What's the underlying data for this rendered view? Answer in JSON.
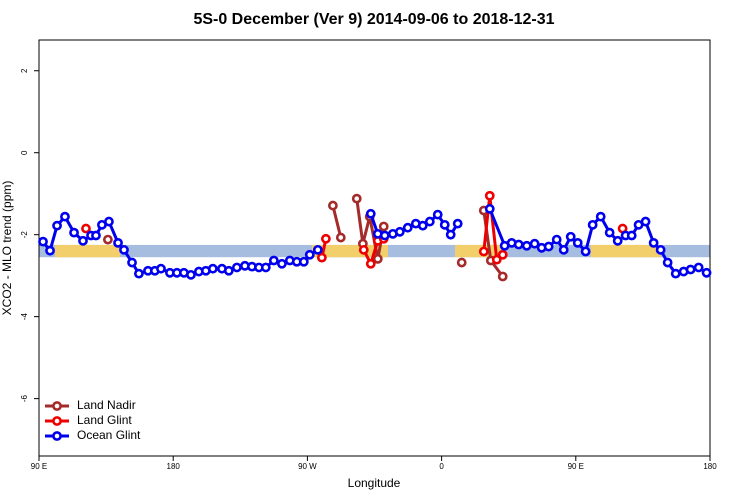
{
  "chart_data": {
    "type": "line",
    "title": "5S-0 December (Ver 9)   2014-09-06 to 2018-12-31",
    "x_label": "Longitude",
    "y_label": "XCO2 - MLO trend (ppm)",
    "xlim": [
      90,
      540
    ],
    "ylim": [
      -7.4,
      2.75
    ],
    "xticks": [
      {
        "value": 90,
        "label": "90 E"
      },
      180,
      {
        "value": 270,
        "label": "90 W"
      },
      {
        "value": 360,
        "label": "0"
      },
      {
        "value": 450,
        "label": "90 E"
      },
      {
        "value": 540,
        "label": "180"
      }
    ],
    "yticks": [
      2,
      0,
      -2,
      -4,
      -6
    ],
    "band": {
      "ylim": [
        -2.55,
        -2.25
      ],
      "color": "#a7bde0",
      "land_color": "#f2cf6b",
      "land_spans": [
        [
          100.7,
          144.4
        ],
        [
          273,
          324
        ],
        [
          369,
          399.7
        ],
        [
          460,
          507
        ]
      ]
    },
    "legend": "bottom-left",
    "series": [
      {
        "name": "Land Nadir",
        "color": "#a52a2a",
        "x": [
          136.2,
          null,
          287.1,
          292.4,
          null,
          303.1,
          307.2,
          311.8,
          317.2,
          321.2,
          null,
          373.5,
          null,
          388.3,
          393.0,
          401.0
        ],
        "values": [
          -2.12,
          null,
          -1.29,
          -2.07,
          null,
          -1.12,
          -2.22,
          -1.56,
          -2.59,
          -1.8,
          null,
          -2.68,
          null,
          -1.41,
          -2.63,
          -3.02
        ]
      },
      {
        "name": "Land Glint",
        "color": "#ee0000",
        "x": [
          121.5,
          null,
          279.7,
          282.4,
          null,
          307.8,
          312.5,
          317.2,
          321.2,
          null,
          388.3,
          392.3,
          397.0,
          401.0,
          null,
          481.4
        ],
        "values": [
          -1.85,
          null,
          -2.56,
          -2.1,
          null,
          -2.37,
          -2.71,
          -2.15,
          -2.1,
          null,
          -2.41,
          -1.05,
          -2.61,
          -2.49,
          null,
          -1.85
        ]
      },
      {
        "name": "Ocean Glint",
        "color": "#0000ee",
        "x": [
          92.7,
          97.4,
          102.1,
          107.4,
          113.5,
          119.5,
          124.9,
          128.2,
          132.2,
          136.9,
          143.0,
          147.0,
          152.4,
          157.0,
          163.1,
          167.7,
          171.8,
          177.8,
          182.5,
          187.2,
          191.9,
          197.2,
          201.9,
          206.6,
          212.7,
          217.3,
          222.7,
          228.1,
          232.8,
          237.5,
          242.1,
          247.5,
          252.9,
          258.2,
          262.9,
          267.6,
          271.6,
          277.0,
          null,
          312.5,
          317.2,
          321.9,
          327.3,
          332.0,
          337.3,
          342.7,
          347.4,
          352.1,
          357.4,
          362.1,
          366.1,
          370.8,
          null,
          392.3,
          402.3,
          407.0,
          411.7,
          417.1,
          422.4,
          427.1,
          431.8,
          437.2,
          441.9,
          446.6,
          451.3,
          456.6,
          461.3,
          466.7,
          472.7,
          478.1,
          483.4,
          487.5,
          492.1,
          496.8,
          502.2,
          506.9,
          511.6,
          517.0,
          522.3,
          527.0,
          532.4,
          537.7
        ],
        "values": [
          -2.17,
          -2.39,
          -1.78,
          -1.56,
          -1.95,
          -2.15,
          -2.02,
          -2.02,
          -1.76,
          -1.68,
          -2.2,
          -2.37,
          -2.68,
          -2.95,
          -2.88,
          -2.88,
          -2.83,
          -2.93,
          -2.93,
          -2.93,
          -2.98,
          -2.9,
          -2.88,
          -2.83,
          -2.83,
          -2.88,
          -2.8,
          -2.76,
          -2.78,
          -2.8,
          -2.8,
          -2.63,
          -2.71,
          -2.63,
          -2.66,
          -2.66,
          -2.49,
          -2.37,
          null,
          -1.49,
          -1.98,
          -2.02,
          -1.98,
          -1.93,
          -1.83,
          -1.73,
          -1.78,
          -1.68,
          -1.51,
          -1.76,
          -2.0,
          -1.73,
          null,
          -1.37,
          -2.27,
          -2.2,
          -2.24,
          -2.27,
          -2.22,
          -2.32,
          -2.29,
          -2.12,
          -2.37,
          -2.05,
          -2.2,
          -2.41,
          -1.76,
          -1.56,
          -1.95,
          -2.15,
          -2.02,
          -2.02,
          -1.76,
          -1.68,
          -2.2,
          -2.37,
          -2.68,
          -2.95,
          -2.9,
          -2.85,
          -2.8,
          -2.93
        ]
      }
    ]
  }
}
